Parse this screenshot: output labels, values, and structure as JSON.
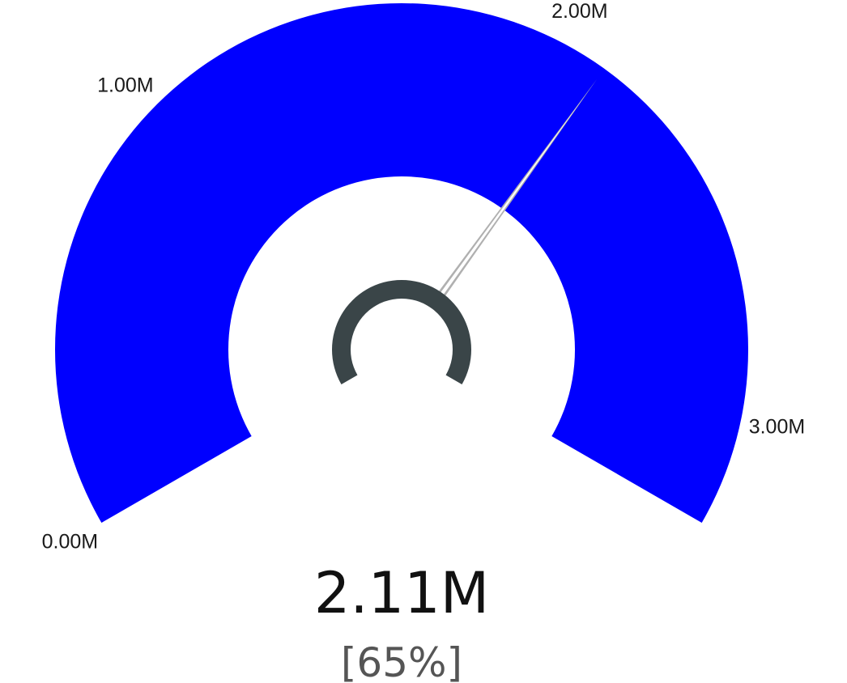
{
  "chart_data": {
    "type": "gauge",
    "min": 0,
    "max": 3.25,
    "value": 2.11,
    "unit": "M",
    "value_label": "2.11M",
    "percent_label": "[65%]",
    "tick_values": [
      0,
      1,
      2,
      3
    ],
    "tick_labels": [
      "0.00M",
      "1.00M",
      "2.00M",
      "3.00M"
    ],
    "sweep_degrees": 240,
    "band_color": "#0000ff",
    "needle_color": "#b0b0b0",
    "hub_color": "#3a4548"
  }
}
